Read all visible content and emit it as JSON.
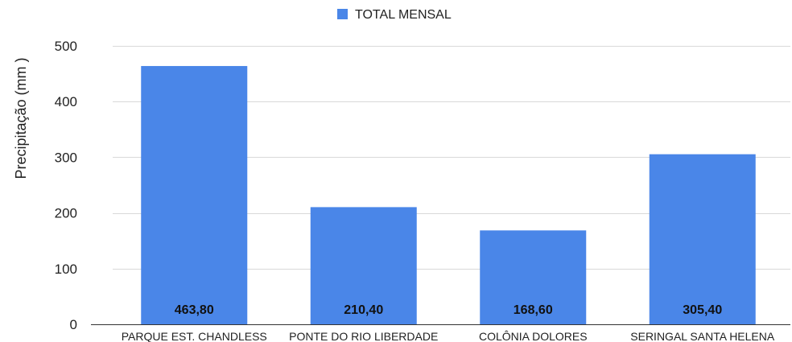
{
  "chart_data": {
    "type": "bar",
    "title": "",
    "xlabel": "",
    "ylabel": "Precipitação (mm )",
    "categories": [
      "PARQUE EST. CHANDLESS",
      "PONTE DO RIO LIBERDADE",
      "COLÔNIA DOLORES",
      "SERINGAL SANTA HELENA"
    ],
    "series": [
      {
        "name": "TOTAL MENSAL",
        "values": [
          463.8,
          210.4,
          168.6,
          305.4
        ],
        "labels": [
          "463,80",
          "210,40",
          "168,60",
          "305,40"
        ],
        "color": "#4a86e8"
      }
    ],
    "ylim": [
      0,
      500
    ],
    "yticks": [
      0,
      100,
      200,
      300,
      400,
      500
    ],
    "grid": true,
    "legend": "top-center"
  }
}
